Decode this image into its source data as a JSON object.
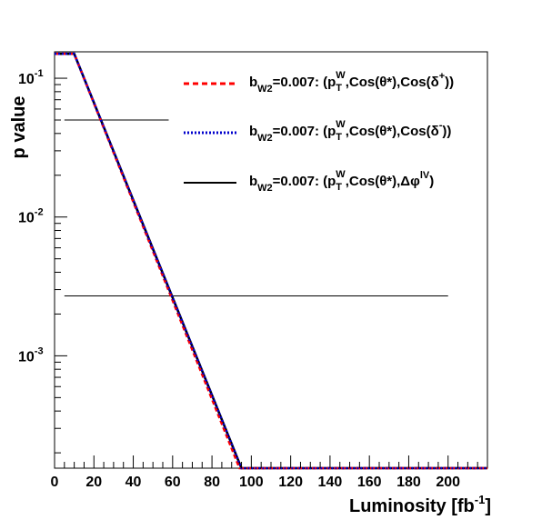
{
  "chart_data": {
    "type": "line",
    "xlabel": "Luminosity [fb",
    "xlabel_sup": "-1",
    "xlabel_end": "]",
    "ylabel": "p value",
    "xlim": [
      0,
      220
    ],
    "ylim": [
      0.000155,
      0.155
    ],
    "yscale": "log",
    "grid": false,
    "legend_position": "top-right",
    "x_ticks": [
      0,
      20,
      40,
      60,
      80,
      100,
      120,
      140,
      160,
      180,
      200
    ],
    "x_tick_labels": [
      "0",
      "20",
      "40",
      "60",
      "80",
      "100",
      "120",
      "140",
      "160",
      "180",
      "200"
    ],
    "y_ticks": [
      0.1,
      0.01,
      0.001
    ],
    "y_tick_labels": [
      {
        "base": "10",
        "exp": "-1"
      },
      {
        "base": "10",
        "exp": "-2"
      },
      {
        "base": "10",
        "exp": "-3"
      }
    ],
    "series": [
      {
        "legend": {
          "pre": "b",
          "sub1": "W2",
          "mid": "=0.007: (p",
          "supW": "W",
          "subT": "T",
          "rest": ",Cos(θ*),Cos(δ",
          "sup2": "+",
          "end": "))"
        },
        "color": "#ff0000",
        "dash": "dashed",
        "x": [
          0,
          10,
          94,
          220
        ],
        "y": [
          0.15,
          0.15,
          0.000155,
          0.000155
        ]
      },
      {
        "legend": {
          "pre": "b",
          "sub1": "W2",
          "mid": "=0.007: (p",
          "supW": "W",
          "subT": "T",
          "rest": ",Cos(θ*),Cos(δ",
          "sup2": "-",
          "end": "))"
        },
        "color": "#0000cc",
        "dash": "dotted",
        "x": [
          0,
          10,
          95,
          220
        ],
        "y": [
          0.15,
          0.15,
          0.000155,
          0.000155
        ]
      },
      {
        "legend": {
          "pre": "b",
          "sub1": "W2",
          "mid": "=0.007: (p",
          "supW": "W",
          "subT": "T",
          "rest": ",Cos(θ*),Δφ",
          "sup2": "lV",
          "end": ")"
        },
        "color": "#000000",
        "dash": "solid",
        "x": [
          0,
          10,
          95,
          220
        ],
        "y": [
          0.15,
          0.15,
          0.000155,
          0.000155
        ]
      }
    ],
    "reference_lines": [
      {
        "y": 0.05,
        "x_start": 5,
        "x_end": 58
      },
      {
        "y": 0.0027,
        "x_start": 5,
        "x_end": 200
      }
    ]
  }
}
